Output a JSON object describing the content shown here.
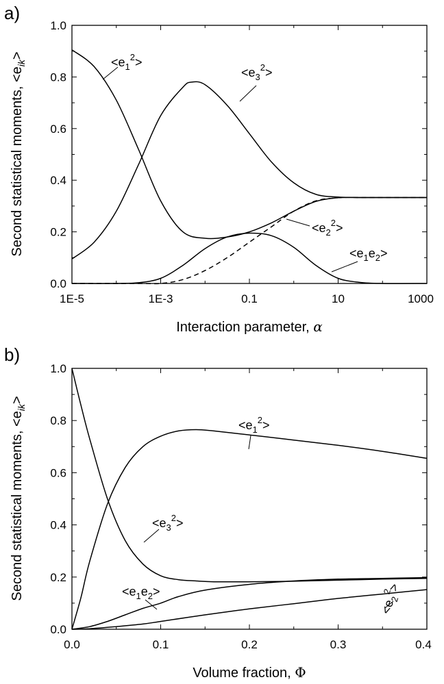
{
  "panels": {
    "a": {
      "panel_label": "a)",
      "xlabel": "Interaction parameter, ",
      "xsym": "α",
      "ylabel": "Second statistical moments, <e",
      "ylabel_sub": "ik",
      "ylabel_end": ">",
      "x_ticks": [
        "1E-5",
        "1E-3",
        "0.1",
        "10",
        "1000"
      ],
      "y_ticks": [
        "0.0",
        "0.2",
        "0.4",
        "0.6",
        "0.8",
        "1.0"
      ],
      "labels": {
        "e1sq": {
          "pre": "<e",
          "sub": "1",
          "sup": "2",
          "post": ">"
        },
        "e3sq": {
          "pre": "<e",
          "sub": "3",
          "sup": "2",
          "post": ">"
        },
        "e2sq": {
          "pre": "<e",
          "sub": "2",
          "sup": "2",
          "post": ">"
        },
        "e1e2": {
          "pre": "<e",
          "sub": "1",
          "mid": "e",
          "sub2": "2",
          "post": ">"
        }
      }
    },
    "b": {
      "panel_label": "b)",
      "xlabel": "Volume fraction, ",
      "xsym": "Φ",
      "ylabel": "Second statistical moments, <e",
      "ylabel_sub": "ik",
      "ylabel_end": ">",
      "x_ticks": [
        "0.0",
        "0.1",
        "0.2",
        "0.3",
        "0.4"
      ],
      "y_ticks": [
        "0.0",
        "0.2",
        "0.4",
        "0.6",
        "0.8",
        "1.0"
      ],
      "labels": {
        "e1sq": {
          "pre": "<e",
          "sub": "1",
          "sup": "2",
          "post": ">"
        },
        "e3sq": {
          "pre": "<e",
          "sub": "3",
          "sup": "2",
          "post": ">"
        },
        "e2sq": {
          "pre": "<e",
          "sub": "2",
          "sup": "2",
          "post": ">"
        },
        "e1e2": {
          "pre": "<e",
          "sub": "1",
          "mid": "e",
          "sub2": "2",
          "post": ">"
        }
      }
    }
  },
  "chart_data": [
    {
      "type": "line",
      "panel": "a",
      "xlabel": "Interaction parameter, α",
      "ylabel": "Second statistical moments, <e_ik>",
      "xscale": "log",
      "xlim": [
        1e-05,
        1000
      ],
      "ylim": [
        0,
        1
      ],
      "grid": false,
      "series": [
        {
          "name": "<e1^2>",
          "style": "solid",
          "x": [
            1e-05,
            3.16e-05,
            0.0001,
            0.000316,
            0.001,
            0.00316,
            0.01,
            0.0316,
            0.1,
            0.316,
            1,
            3.16,
            10,
            31.6,
            100,
            1000
          ],
          "y": [
            0.905,
            0.84,
            0.71,
            0.52,
            0.32,
            0.2,
            0.175,
            0.18,
            0.2,
            0.235,
            0.28,
            0.318,
            0.332,
            0.333,
            0.333,
            0.333
          ]
        },
        {
          "name": "<e3^2>",
          "style": "solid",
          "x": [
            1e-05,
            3.16e-05,
            0.0001,
            0.000316,
            0.001,
            0.00316,
            0.005,
            0.01,
            0.0316,
            0.1,
            0.316,
            1,
            3.16,
            10,
            31.6,
            100,
            1000
          ],
          "y": [
            0.095,
            0.16,
            0.28,
            0.46,
            0.65,
            0.76,
            0.78,
            0.77,
            0.69,
            0.58,
            0.47,
            0.39,
            0.345,
            0.335,
            0.333,
            0.333,
            0.333
          ]
        },
        {
          "name": "<e1e2>",
          "style": "solid",
          "x": [
            1e-05,
            0.0001,
            0.000316,
            0.001,
            0.00316,
            0.01,
            0.0316,
            0.1,
            0.316,
            1,
            3.16,
            10,
            31.6,
            100,
            1000
          ],
          "y": [
            0.0,
            0.0,
            0.003,
            0.02,
            0.07,
            0.135,
            0.18,
            0.195,
            0.185,
            0.14,
            0.07,
            0.02,
            0.004,
            0.0,
            0.0
          ]
        },
        {
          "name": "<e2^2>",
          "style": "dashed",
          "x": [
            1e-05,
            0.000316,
            0.001,
            0.00316,
            0.01,
            0.0316,
            0.1,
            0.316,
            1,
            3.16,
            10,
            31.6,
            100,
            1000
          ],
          "y": [
            0.0,
            0.0,
            0.0,
            0.015,
            0.05,
            0.1,
            0.16,
            0.22,
            0.28,
            0.32,
            0.332,
            0.333,
            0.333,
            0.333
          ]
        }
      ]
    },
    {
      "type": "line",
      "panel": "b",
      "xlabel": "Volume fraction, Φ",
      "ylabel": "Second statistical moments, <e_ik>",
      "xlim": [
        0,
        0.4
      ],
      "ylim": [
        0,
        1
      ],
      "grid": false,
      "series": [
        {
          "name": "<e1^2>",
          "x": [
            0,
            0.01,
            0.02,
            0.04,
            0.06,
            0.08,
            0.1,
            0.12,
            0.14,
            0.16,
            0.2,
            0.25,
            0.3,
            0.35,
            0.4
          ],
          "y": [
            0.0,
            0.12,
            0.26,
            0.48,
            0.62,
            0.7,
            0.74,
            0.76,
            0.765,
            0.76,
            0.745,
            0.725,
            0.705,
            0.682,
            0.655
          ]
        },
        {
          "name": "<e3^2>",
          "x": [
            0,
            0.01,
            0.02,
            0.04,
            0.06,
            0.08,
            0.1,
            0.12,
            0.14,
            0.16,
            0.2,
            0.25,
            0.3,
            0.35,
            0.4
          ],
          "y": [
            1.0,
            0.86,
            0.73,
            0.5,
            0.34,
            0.25,
            0.205,
            0.19,
            0.185,
            0.182,
            0.182,
            0.184,
            0.188,
            0.192,
            0.195
          ]
        },
        {
          "name": "<e1e2>",
          "x": [
            0,
            0.02,
            0.04,
            0.06,
            0.08,
            0.1,
            0.12,
            0.15,
            0.2,
            0.25,
            0.3,
            0.35,
            0.4
          ],
          "y": [
            0.0,
            0.01,
            0.03,
            0.055,
            0.08,
            0.1,
            0.125,
            0.15,
            0.172,
            0.185,
            0.192,
            0.195,
            0.198
          ]
        },
        {
          "name": "<e2^2>",
          "x": [
            0,
            0.02,
            0.05,
            0.08,
            0.1,
            0.15,
            0.2,
            0.25,
            0.3,
            0.35,
            0.4
          ],
          "y": [
            0.0,
            0.002,
            0.01,
            0.02,
            0.03,
            0.055,
            0.078,
            0.098,
            0.118,
            0.135,
            0.152
          ]
        }
      ]
    }
  ]
}
